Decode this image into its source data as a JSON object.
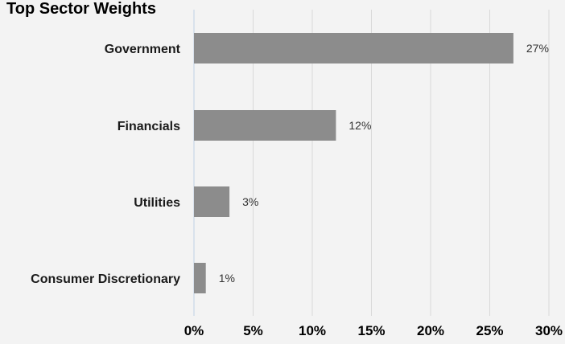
{
  "chart_data": {
    "type": "bar",
    "orientation": "horizontal",
    "title": "Top Sector Weights",
    "categories": [
      "Government",
      "Financials",
      "Utilities",
      "Consumer Discretionary"
    ],
    "values": [
      27,
      12,
      3,
      1
    ],
    "value_unit": "%",
    "data_labels": [
      "27%",
      "12%",
      "3%",
      "1%"
    ],
    "xlim": [
      0,
      30
    ],
    "x_ticks": [
      0,
      5,
      10,
      15,
      20,
      25,
      30
    ],
    "x_tick_labels": [
      "0%",
      "5%",
      "10%",
      "15%",
      "20%",
      "25%",
      "30%"
    ],
    "xlabel": "",
    "ylabel": "",
    "grid": true,
    "legend": "none",
    "bar_color": "#8c8c8c",
    "background_color": "#f3f3f3"
  }
}
